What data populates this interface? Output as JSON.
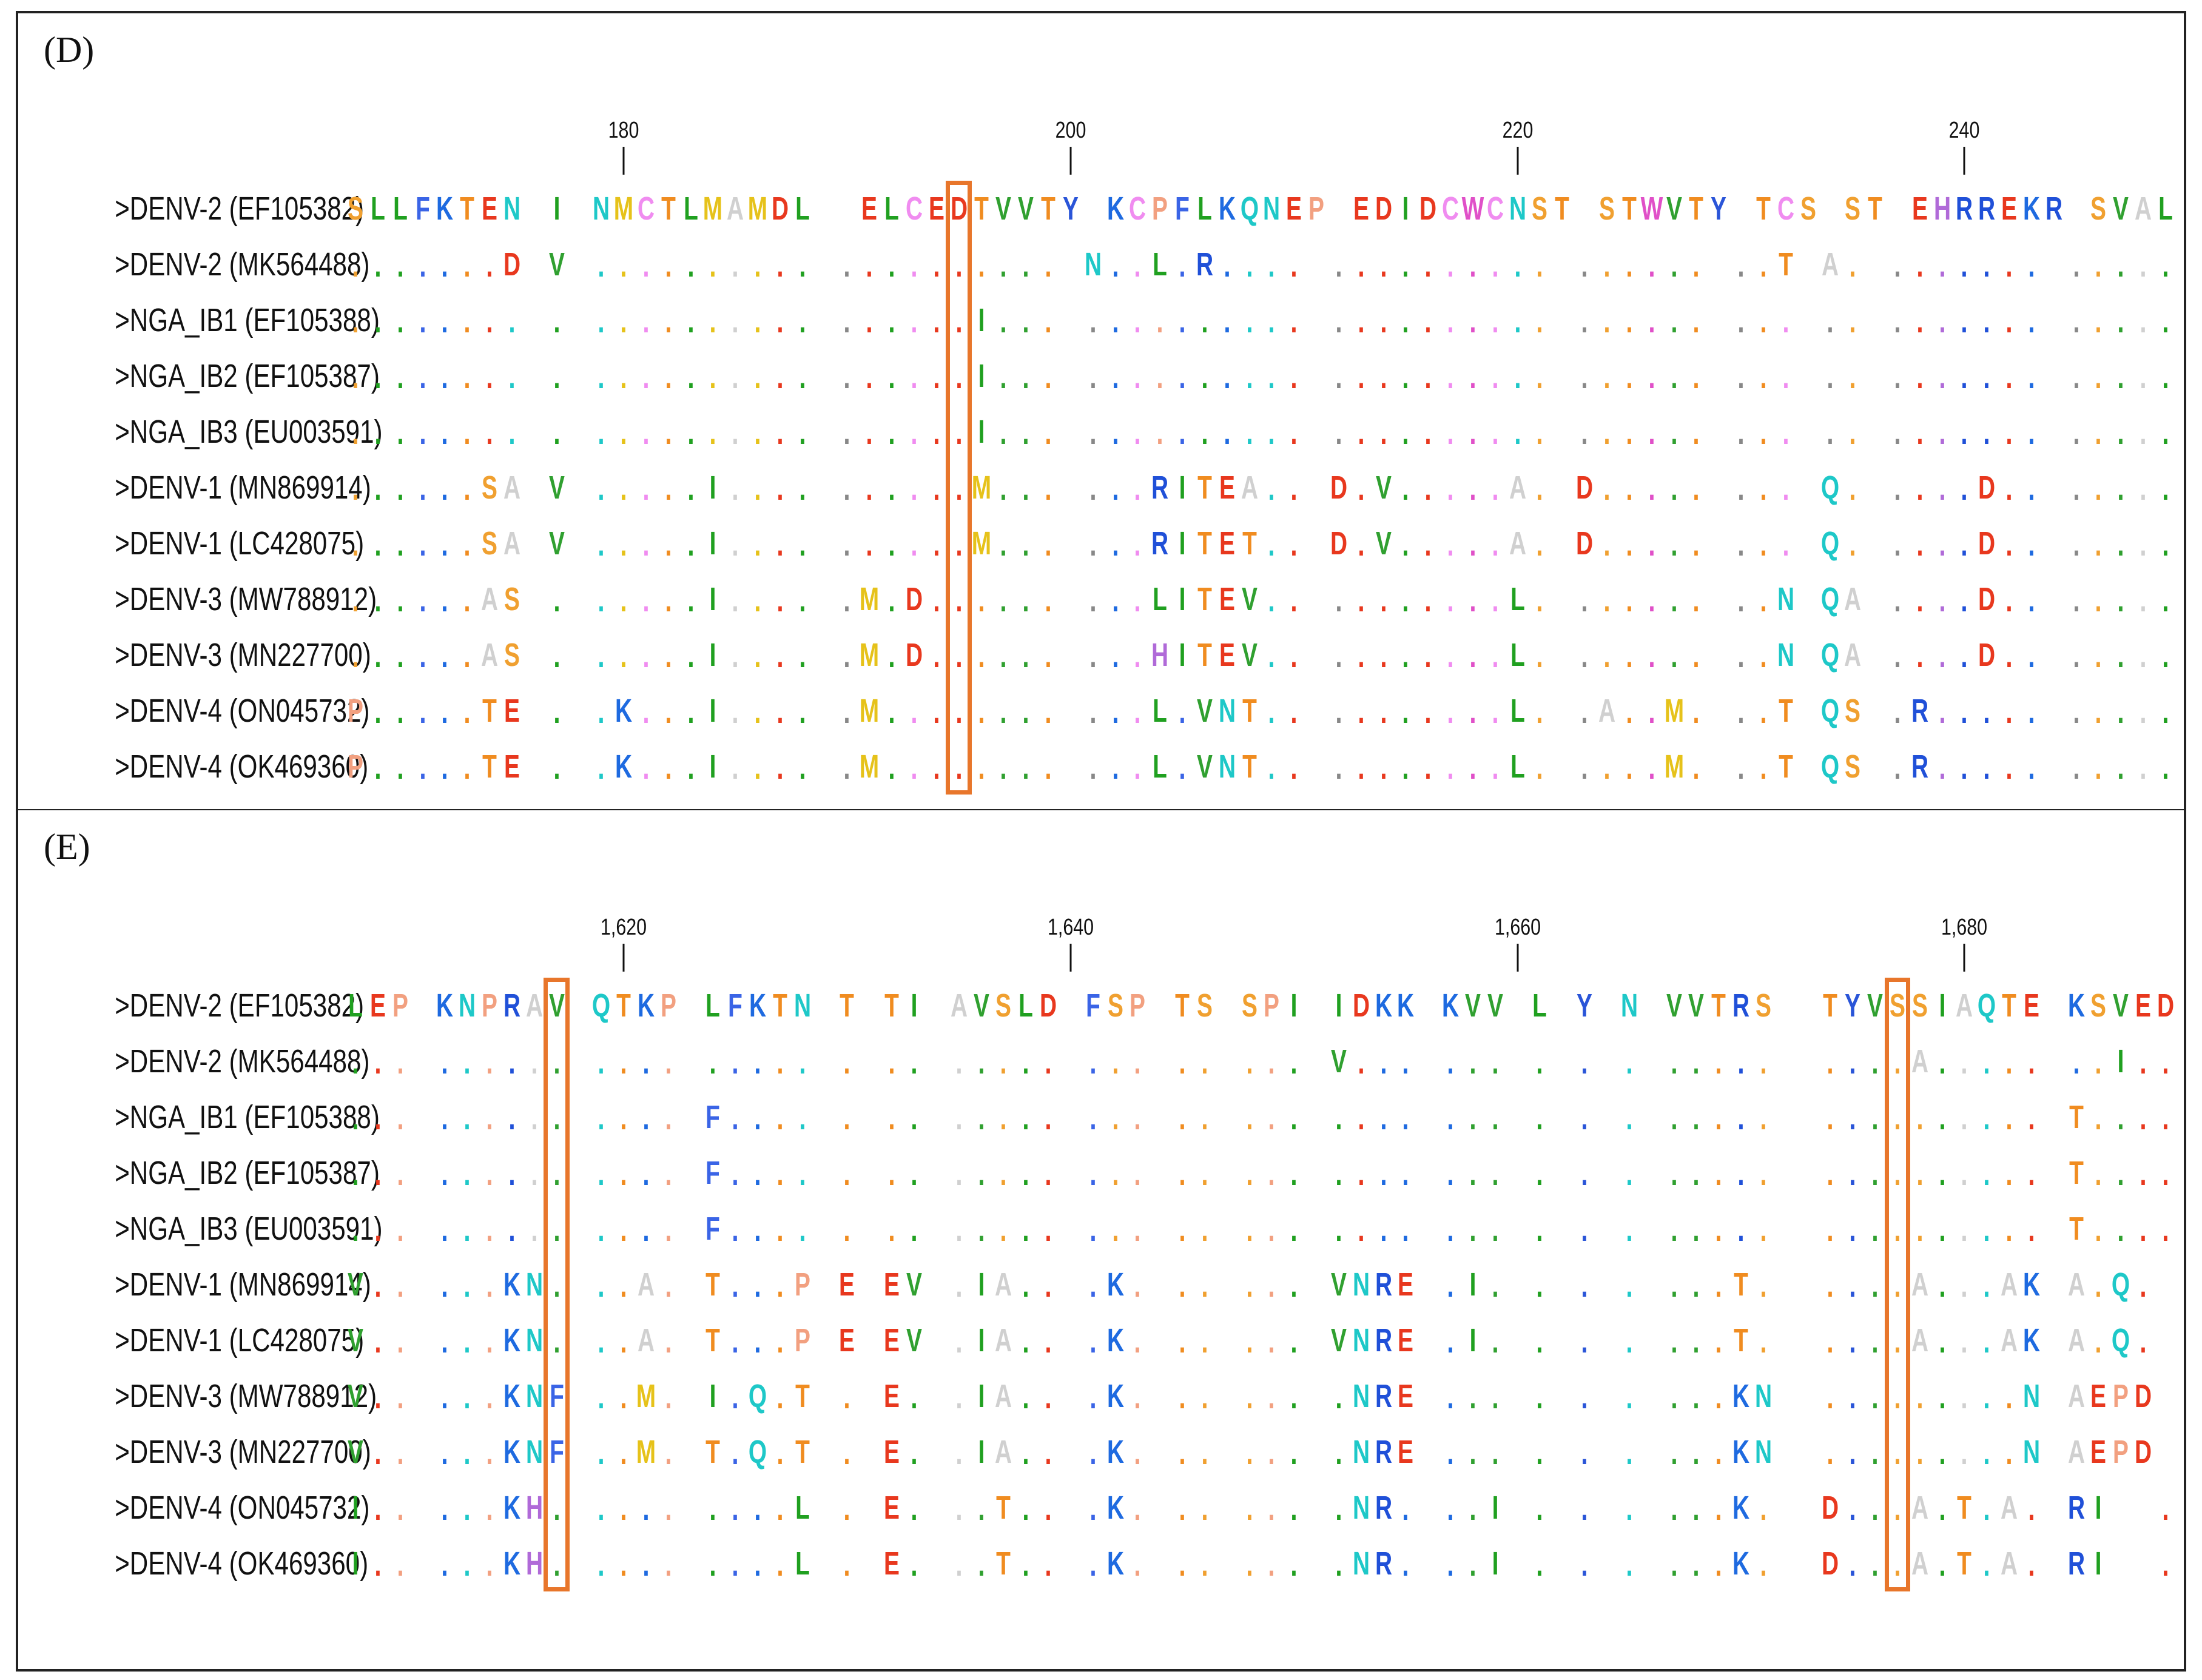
{
  "colors": {
    "A": "#d0d0d0",
    "C": "#f08cf0",
    "D": "#e8381e",
    "E": "#e8381e",
    "F": "#3a64e6",
    "G": "#f0a030",
    "H": "#b06ad8",
    "I": "#20a020",
    "K": "#1e6ae0",
    "L": "#20a020",
    "M": "#e6c21a",
    "N": "#1ec8c8",
    "P": "#f2a080",
    "Q": "#1ec8c8",
    "R": "#2050d8",
    "S": "#f0a030",
    "T": "#f08c20",
    "V": "#30a030",
    "W": "#e050c8",
    "Y": "#2a55d8",
    "-": "#333333",
    "highlight": "#E8762B"
  },
  "panels": [
    {
      "label": "(D)",
      "ticks": [
        {
          "label": "180",
          "col": 12
        },
        {
          "label": "200",
          "col": 32
        },
        {
          "label": "220",
          "col": 52
        },
        {
          "label": "240",
          "col": 72
        }
      ],
      "ncols": 82,
      "highlights": [
        {
          "col": 27
        }
      ],
      "rows": [
        {
          "name": ">DENV-2 (EF105382)",
          "seq": "SLLFKTEN I NMCTLMAMDL  ELCEDTVVTY KCPFLKQNEP EDIDCWCNST STWVTY TCS ST EHRREKR SVALVPHV M"
        },
        {
          "name": ">DENV-2 (MK564488)",
          "seq": ".......D V .......... .......... N..L.R.... .......... ...... ..T A. ....... ........ ."
        },
        {
          "name": ">NGA_IB1 (EF105388)",
          "seq": "........ . .......... ......I... .......... .......... ...... ... .. ....... ........ ."
        },
        {
          "name": ">NGA_IB2 (EF105387)",
          "seq": "........ . .......... ......I... .......... .......... ...... ... .. ....... ........ ."
        },
        {
          "name": ">NGA_IB3 (EU003591)",
          "seq": "........ . .......... ......I... .......... .......... ...... ... .. ....... ........ ."
        },
        {
          "name": ">DENV-1 (MN869914)",
          "seq": "......SA V .....I.... ......M... ...RITEA.. D.V.....A. D..... ... Q. ....D.. ......A. L"
        },
        {
          "name": ">DENV-1 (LC428075)",
          "seq": "......SA V .....I.... ......M... ...RITET.. D.V.....A. D..... ... Q. ....D.. ......A. L"
        },
        {
          "name": ">DENV-3 (MW788912)",
          "seq": "......AS . .....I.... .M.D...... ...LITEV.. ........L. ...... ..N QA ....D.. ......A. ."
        },
        {
          "name": ">DENV-3 (MN227700)",
          "seq": "......AS . .....I.... .M.D...... ...HITEV.. ........L. ...... ..N QA ....D.. ......A. ."
        },
        {
          "name": ">DENV-4 (ON045732)",
          "seq": "P.....TE . .K...I.... .M........ ...L.VNT.. ........L. .A..M. ..T QS .R..... ......T.S ."
        },
        {
          "name": ">DENV-4 (OK469360)",
          "seq": "P.....TE . .K...I.... .M........ ...L.VNT.. ........L. ....M. ..T QS .R..... ......T.S ."
        }
      ]
    },
    {
      "label": "(E)",
      "ticks": [
        {
          "label": "1,620",
          "col": 12
        },
        {
          "label": "1,640",
          "col": 32
        },
        {
          "label": "1,660",
          "col": 52
        },
        {
          "label": "1,680",
          "col": 72
        }
      ],
      "ncols": 82,
      "highlights": [
        {
          "col": 9
        },
        {
          "col": 69
        }
      ],
      "rows": [
        {
          "name": ">DENV-2 (EF105382)",
          "seq": "LEP KNPRAV QTKP LFKTN T TI AVSLD FSP TS SPI IDKK KVV L Y N VVTRS  TYVSSIAQTE KSVED-NPEI"
        },
        {
          "name": ">DENV-2 (MK564488)",
          "seq": "... ...... .... ..... . .. ..... ... .. ... V... ... . . . .....  ....A..... ..I..-...."
        },
        {
          "name": ">NGA_IB1 (EF105388)",
          "seq": "... ...... .... F.... . .. ..... ... .. ... .... ... . . . .....  .......... T....-...."
        },
        {
          "name": ">NGA_IB2 (EF105387)",
          "seq": "... ...... .... F.... . .. ..... ... .. ... .... ... . . . .....  .......... T....-...."
        },
        {
          "name": ">NGA_IB3 (EU003591)",
          "seq": "... ...... .... F.... . .. ..... ... .. ... .... ... . . . .....  .......... T....-...."
        },
        {
          "name": ">DENV-1 (MN869914)",
          "seq": "V.. ...KN. ..A. T...P E EV .IA.. .K. .. ... VNRE .I. . . . ...T.  ....A...AK A.Q. PL..."
        },
        {
          "name": ">DENV-1 (LC428075)",
          "seq": "V.. ...KN. ..A. T...P E EV .IA.. .K. .. ... VNRE .I. . . . ...T.  ....A...AK A.Q. PL..."
        },
        {
          "name": ">DENV-3 (MW788912)",
          "seq": "V.. ...KNF ..M. I.Q.T . E. .IA.. .K. .. ... .NRE ... . . . ...KN  .........N AEPD PT..L"
        },
        {
          "name": ">DENV-3 (MN227700)",
          "seq": "V.. ...KNF ..M. T.Q.T . E. .IA.. .K. .. ... .NRE ... . . . ...KN  .........N AEPD PT..L"
        },
        {
          "name": ">DENV-4 (ON045732)",
          "seq": "I.. ...KH. .... ....L . E. ..T.. .K. .. ... .NR. ..I . . . ...K.  D...A.T.A. RI  .-PDY.V"
        },
        {
          "name": ">DENV-4 (OK469360)",
          "seq": "I.. ...KH. .... ....L . E. ..T.. .K. .. ... .NR. ..I . . . ...K.  D...A.T.A. RI  .-PDY.V"
        }
      ]
    }
  ]
}
